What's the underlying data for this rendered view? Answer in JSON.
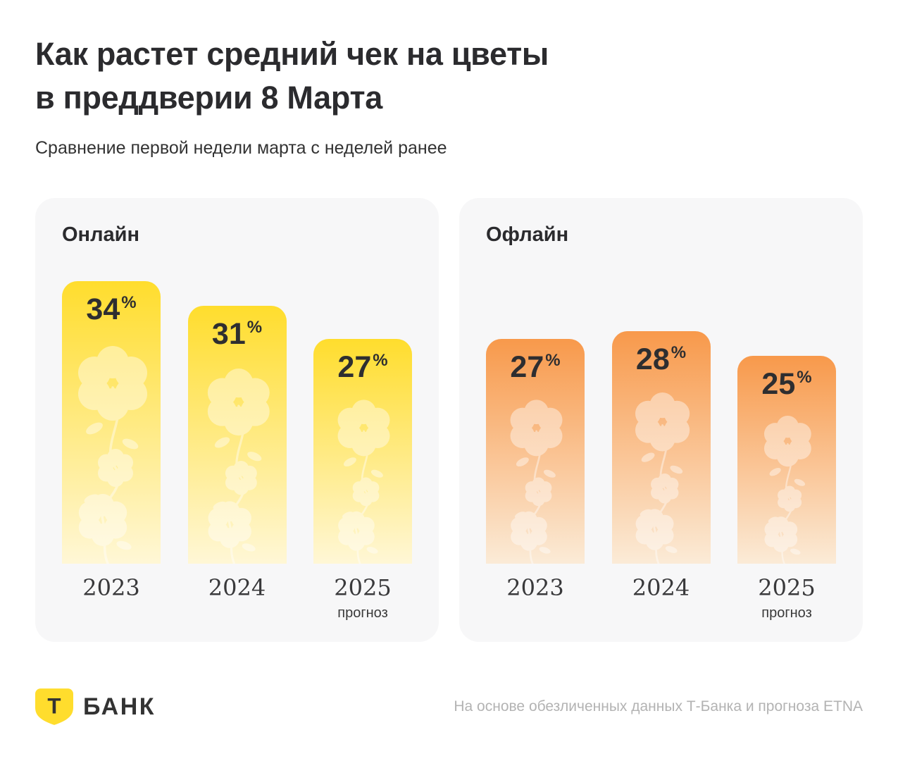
{
  "title": {
    "line1": "Как растет средний чек на цветы",
    "line2": "в преддверии 8 Марта"
  },
  "subtitle": "Сравнение первой недели марта с неделей ранее",
  "chart_data": [
    {
      "type": "bar",
      "title": "Онлайн",
      "categories": [
        "2023",
        "2024",
        "2025"
      ],
      "category_notes": [
        "",
        "",
        "прогноз"
      ],
      "values": [
        34,
        31,
        27
      ],
      "unit": "%",
      "ylim": [
        0,
        40
      ],
      "grid": false,
      "bar_color_top": "#FFDD2D",
      "bar_color_bottom": "#FFF7D6"
    },
    {
      "type": "bar",
      "title": "Офлайн",
      "categories": [
        "2023",
        "2024",
        "2025"
      ],
      "category_notes": [
        "",
        "",
        "прогноз"
      ],
      "values": [
        27,
        28,
        25
      ],
      "unit": "%",
      "ylim": [
        0,
        40
      ],
      "grid": false,
      "bar_color_top": "#F8994B",
      "bar_color_bottom": "#FBEBD7"
    }
  ],
  "footer": {
    "logo_letter": "Т",
    "brand": "БАНК",
    "source": "На основе обезличенных данных Т-Банка и прогноза ETNA"
  },
  "colors": {
    "brand_yellow": "#FFDD2D",
    "card_background": "#F7F7F8",
    "text_dark": "#2B2B2E",
    "text_gray": "#B3B3B3",
    "logo_letter_color": "#333333"
  }
}
